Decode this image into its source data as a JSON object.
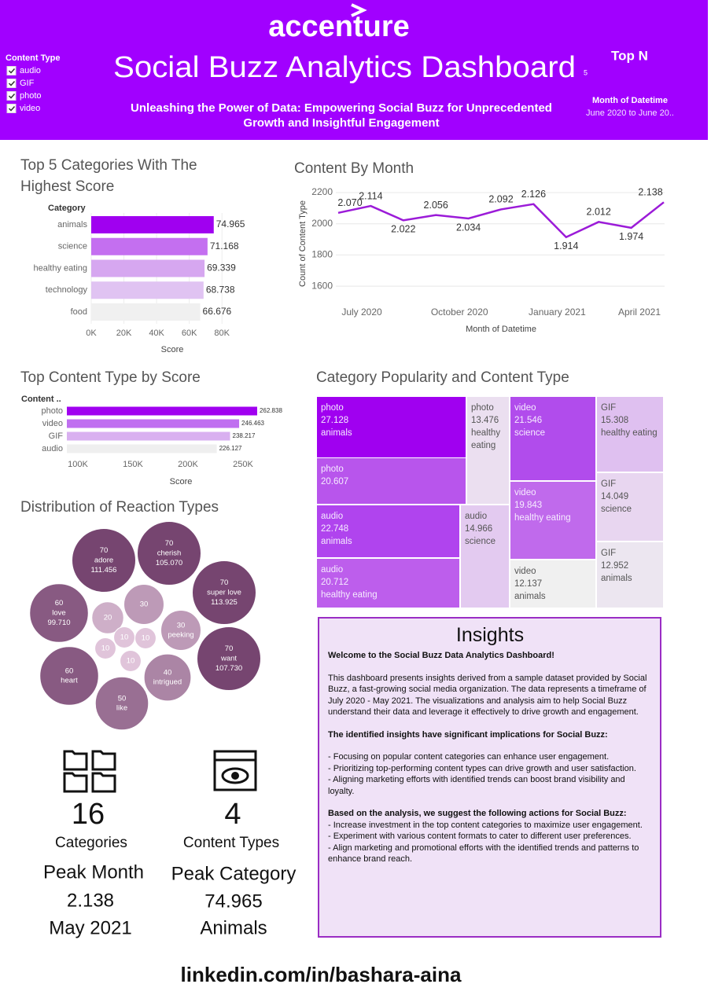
{
  "header": {
    "logo": "accenture",
    "title": "Social Buzz Analytics Dashboard",
    "subtitle": "Unleashing the Power of Data: Empowering Social Buzz for Unprecedented Growth and Insightful Engagement"
  },
  "filters": {
    "content_type": {
      "label": "Content Type",
      "options": [
        "audio",
        "GIF",
        "photo",
        "video"
      ]
    },
    "top_n": {
      "label": "Top N",
      "value": 5
    },
    "month": {
      "label": "Month of Datetime",
      "value": "June 2020 to June 20.."
    }
  },
  "chart_data": [
    {
      "type": "bar",
      "orientation": "horizontal",
      "title": "Top 5 Categories With The Highest Score",
      "category_label": "Category",
      "xlabel": "Score",
      "categories": [
        "animals",
        "science",
        "healthy eating",
        "technology",
        "food"
      ],
      "values": [
        74965,
        71168,
        69339,
        68738,
        66676
      ],
      "value_labels": [
        "74.965",
        "71.168",
        "69.339",
        "68.738",
        "66.676"
      ],
      "colors": [
        "#a000f0",
        "#c46ff0",
        "#d6a7f0",
        "#e0c3f2",
        "#f0f0f0"
      ],
      "xlim": [
        0,
        90000
      ],
      "xticks": [
        {
          "value": 0,
          "label": "0K"
        },
        {
          "value": 20000,
          "label": "20K"
        },
        {
          "value": 40000,
          "label": "40K"
        },
        {
          "value": 60000,
          "label": "60K"
        },
        {
          "value": 80000,
          "label": "80K"
        }
      ],
      "grid": true
    },
    {
      "type": "line",
      "title": "Content By Month",
      "ylabel": "Count of Content Type",
      "xlabel": "Month of Datetime",
      "categories": [
        "July 2020",
        null,
        null,
        "October 2020",
        null,
        null,
        "January 2021",
        null,
        null,
        "April 2021",
        null
      ],
      "values": [
        2070,
        2114,
        2022,
        2056,
        2034,
        2092,
        2126,
        1914,
        2012,
        1974,
        2138
      ],
      "value_labels": [
        "2.070",
        "2.114",
        "2.022",
        "2.056",
        "2.034",
        "2.092",
        "2.126",
        "1.914",
        "2.012",
        "1.974",
        "2.138"
      ],
      "color": "#9b1bd8",
      "ylim": [
        1500,
        2200
      ],
      "yticks": [
        1600,
        1800,
        2000,
        2200
      ],
      "grid": true
    },
    {
      "type": "bar",
      "orientation": "horizontal",
      "title": "Top Content Type by Score",
      "category_label": "Content ..",
      "xlabel": "Score",
      "categories": [
        "photo",
        "video",
        "GIF",
        "audio"
      ],
      "values": [
        262838,
        246463,
        238217,
        226127
      ],
      "value_labels": [
        "262.838",
        "246.463",
        "238.217",
        "226.127"
      ],
      "colors": [
        "#a000f0",
        "#c06ff0",
        "#d9b0f0",
        "#efefef"
      ],
      "xlim": [
        90000,
        290000
      ],
      "xticks": [
        {
          "value": 100000,
          "label": "100K"
        },
        {
          "value": 150000,
          "label": "150K"
        },
        {
          "value": 200000,
          "label": "200K"
        },
        {
          "value": 250000,
          "label": "250K"
        }
      ],
      "grid": false
    },
    {
      "type": "bubble",
      "title": "Distribution of Reaction Types",
      "categories": [
        "adore",
        "cherish",
        "super love",
        "love",
        "want",
        "heart",
        "like",
        "intrigued",
        "peeking",
        null,
        null,
        null,
        null,
        null,
        null
      ],
      "values": [
        70,
        70,
        70,
        60,
        70,
        60,
        50,
        40,
        30,
        30,
        20,
        10,
        10,
        10,
        10
      ],
      "scores": [
        111456,
        105070,
        113925,
        99710,
        107730,
        null,
        null,
        null,
        null,
        null,
        null,
        null,
        null,
        null,
        null
      ],
      "score_labels": [
        "111.456",
        "105.070",
        "113.925",
        "99.710",
        "107.730",
        null,
        null,
        null,
        null,
        null,
        null,
        null,
        null,
        null,
        null
      ],
      "color_range": [
        "#e0c4da",
        "#764570"
      ]
    },
    {
      "type": "treemap",
      "title": "Category Popularity and Content Type",
      "groups": [
        "photo",
        "photo",
        "photo",
        "audio",
        "audio",
        "audio",
        "video",
        "video",
        "video",
        "GIF",
        "GIF",
        "GIF"
      ],
      "categories": [
        "animals",
        null,
        "healthy eating",
        "animals",
        "healthy eating",
        "science",
        "science",
        "healthy eating",
        "animals",
        "healthy eating",
        "science",
        "animals"
      ],
      "values": [
        27128,
        20607,
        13476,
        22748,
        20712,
        14966,
        21546,
        19843,
        12137,
        15308,
        14049,
        12952
      ],
      "value_labels": [
        "27.128",
        "20.607",
        "13.476",
        "22.748",
        "20.712",
        "14.966",
        "21.546",
        "19.843",
        "12.137",
        "15.308",
        "14.049",
        "12.952"
      ],
      "colors": [
        "#a000f0",
        "#b855ec",
        "#ebdff0",
        "#b044ee",
        "#bd5eec",
        "#e3caf0",
        "#b14cec",
        "#c06aec",
        "#f0f0f0",
        "#dfc0f0",
        "#e8d6f0",
        "#ece6f0"
      ]
    }
  ],
  "kpis": [
    {
      "value": 16,
      "label": "Categories"
    },
    {
      "value": 4,
      "label": "Content Types"
    }
  ],
  "peaks": [
    {
      "label": "Peak Month",
      "value": "2.138",
      "detail": "May 2021"
    },
    {
      "label": "Peak Category",
      "value": "74.965",
      "detail": "Animals"
    }
  ],
  "insights": {
    "title": "Insights",
    "welcome": "Welcome to the Social Buzz Data Analytics Dashboard!",
    "intro": "This dashboard presents insights derived from a sample dataset provided by Social Buzz, a fast-growing social media organization. The data represents a timeframe of July 2020 - May 2021. The visualizations and analysis aim to help Social Buzz understand their data and leverage it effectively to drive growth and engagement.",
    "implications_heading": "The identified insights have significant implications for Social Buzz:",
    "implications": [
      "- Focusing on popular content categories can enhance user engagement.",
      "- Prioritizing top-performing content types can drive growth and user satisfaction.",
      "- Aligning marketing efforts with identified trends can boost brand visibility and loyalty."
    ],
    "actions_heading": "Based on the analysis, we suggest the following actions for Social Buzz:",
    "actions": [
      "- Increase investment in the top content categories to maximize user engagement.",
      "- Experiment with various content formats to cater to different user preferences.",
      "- Align marketing and promotional efforts with the identified trends and patterns to enhance brand reach."
    ]
  },
  "footer": "linkedin.com/in/bashara-aina"
}
